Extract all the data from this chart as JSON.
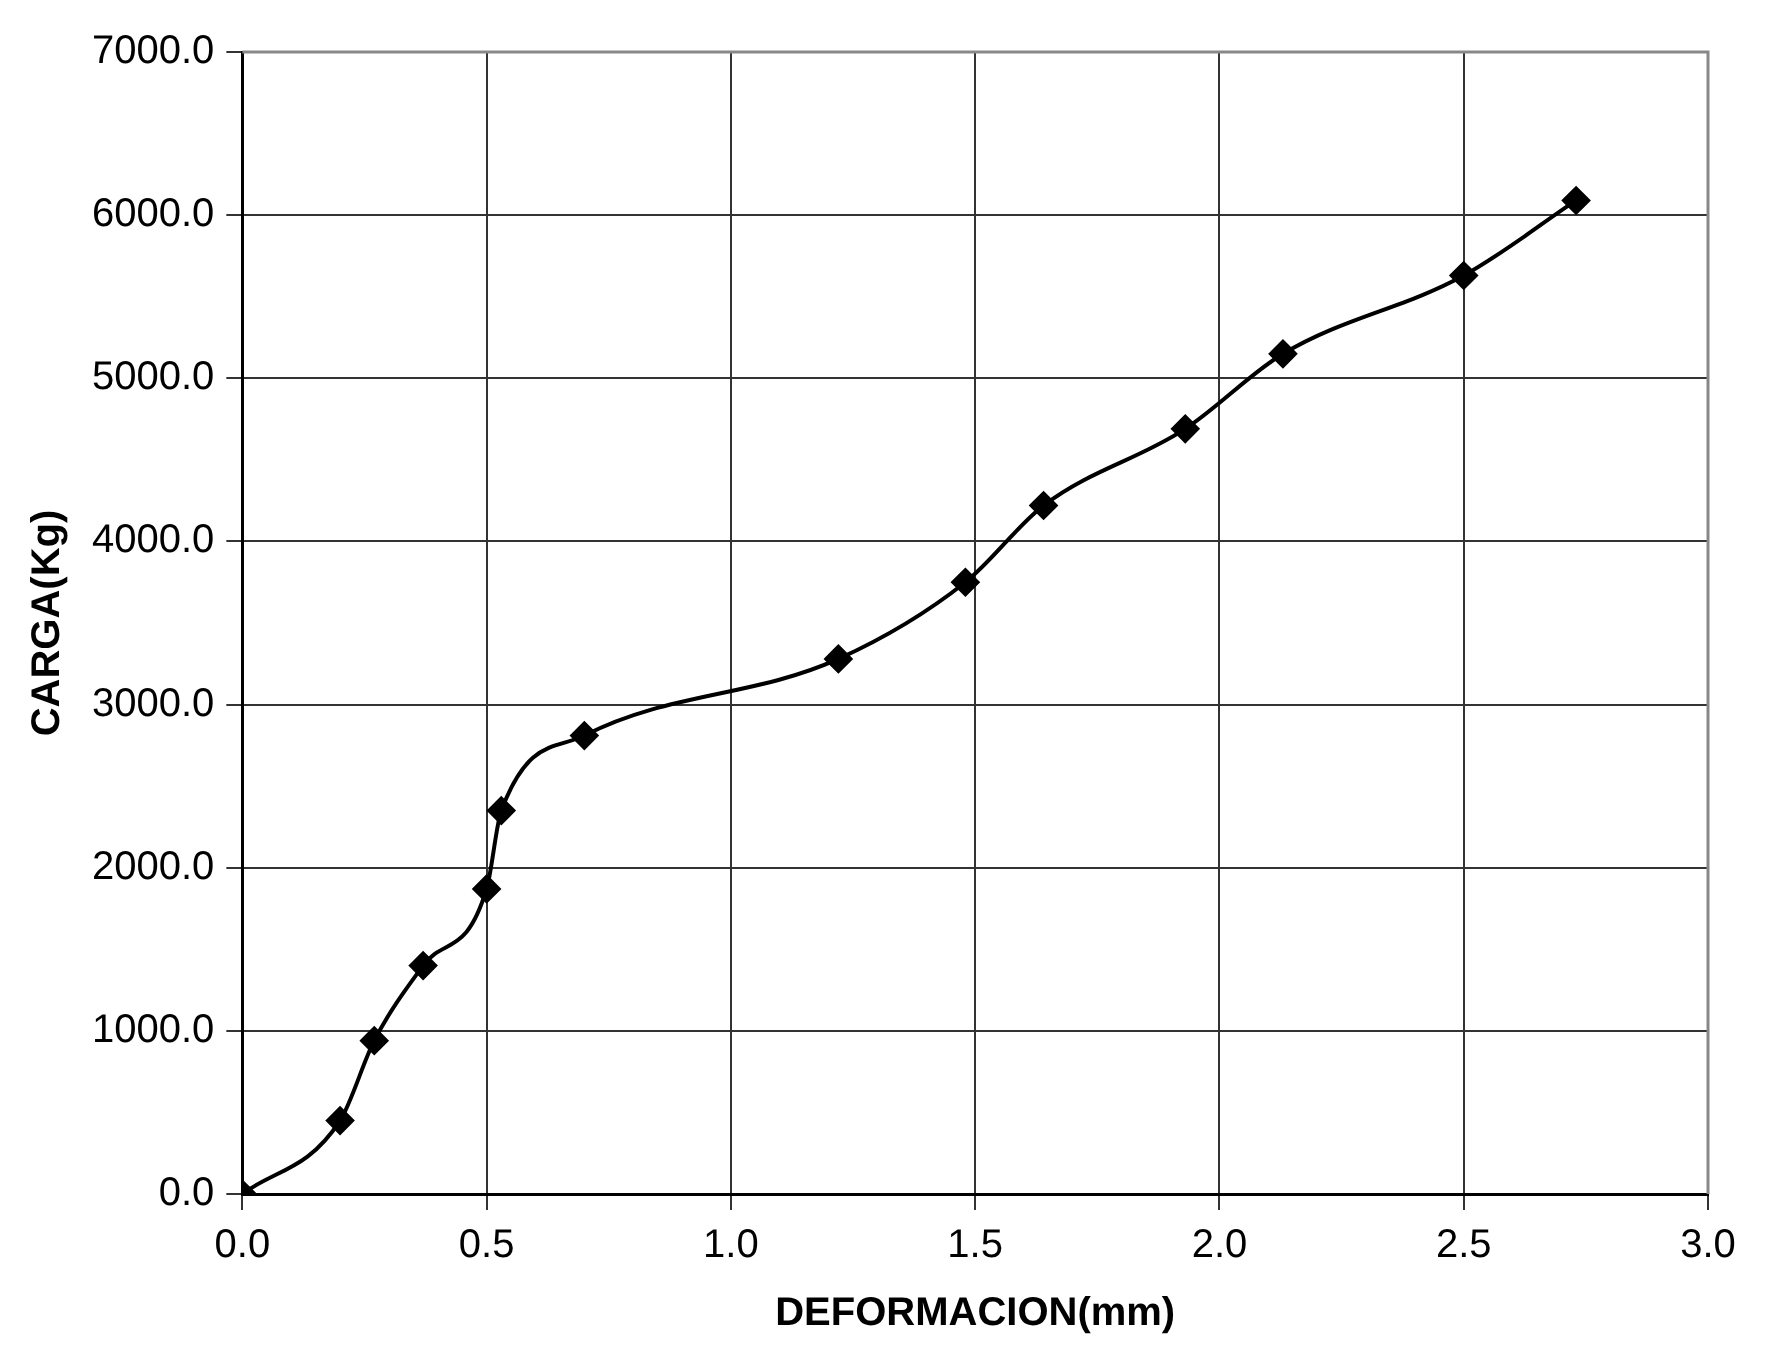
{
  "chart_data": {
    "type": "line",
    "xlabel": "DEFORMACION(mm)",
    "ylabel": "CARGA(Kg)",
    "x": [
      0,
      0.2,
      0.27,
      0.37,
      0.5,
      0.53,
      0.7,
      1.22,
      1.48,
      1.64,
      1.93,
      2.13,
      2.5,
      2.73
    ],
    "series": [
      {
        "color": "#000000",
        "values": [
          0,
          450,
          940,
          1400,
          1870,
          2350,
          2810,
          3280,
          3750,
          4220,
          4690,
          5150,
          5630,
          6090
        ]
      }
    ],
    "xlim": [
      0,
      3
    ],
    "ylim": [
      0,
      7000
    ],
    "xticks": [
      {
        "value": 0,
        "label": "0.0"
      },
      {
        "value": 0.5,
        "label": "0.5"
      },
      {
        "value": 1,
        "label": "1.0"
      },
      {
        "value": 1.5,
        "label": "1.5"
      },
      {
        "value": 2,
        "label": "2.0"
      },
      {
        "value": 2.5,
        "label": "2.5"
      },
      {
        "value": 3,
        "label": "3.0"
      }
    ],
    "yticks": [
      {
        "value": 0,
        "label": "0.0"
      },
      {
        "value": 1000,
        "label": "1000.0"
      },
      {
        "value": 2000,
        "label": "2000.0"
      },
      {
        "value": 3000,
        "label": "3000.0"
      },
      {
        "value": 4000,
        "label": "4000.0"
      },
      {
        "value": 5000,
        "label": "5000.0"
      },
      {
        "value": 6000,
        "label": "6000.0"
      },
      {
        "value": 7000,
        "label": "7000.0"
      }
    ],
    "grid": true,
    "marker": "diamond",
    "line_style": "solid"
  }
}
